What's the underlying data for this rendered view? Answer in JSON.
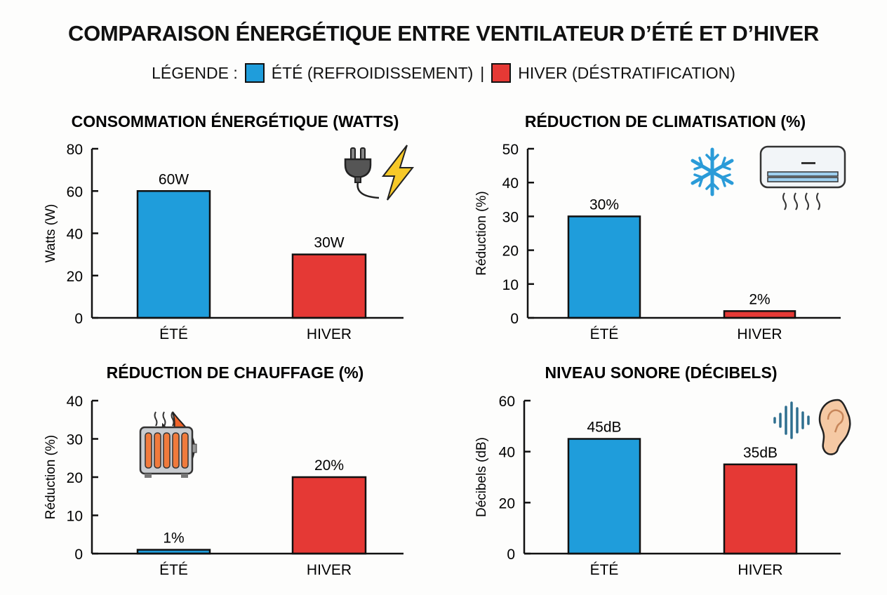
{
  "title": "COMPARAISON ÉNERGÉTIQUE ENTRE VENTILATEUR D’ÉTÉ ET D’HIVER",
  "legend": {
    "label": "LÉGENDE :",
    "items": [
      {
        "name": "ÉTÉ (REFROIDISSEMENT)",
        "color": "#1f9ddb"
      },
      {
        "name": "HIVER (DÉSTRATIFICATION)",
        "color": "#e53935"
      }
    ],
    "separator": "|"
  },
  "chart_data": [
    {
      "type": "bar",
      "title": "CONSOMMATION ÉNERGÉTIQUE (WATTS)",
      "ylabel": "Watts (W)",
      "categories": [
        "ÉTÉ",
        "HIVER"
      ],
      "values": [
        60,
        30
      ],
      "data_labels": [
        "60W",
        "30W"
      ],
      "ylim": [
        0,
        80
      ],
      "yticks": [
        0,
        20,
        40,
        60,
        80
      ],
      "colors": [
        "#1f9ddb",
        "#e53935"
      ],
      "icons": [
        "plug-icon",
        "lightning-icon"
      ]
    },
    {
      "type": "bar",
      "title": "RÉDUCTION DE CLIMATISATION (%)",
      "ylabel": "Réduction (%)",
      "categories": [
        "ÉTÉ",
        "HIVER"
      ],
      "values": [
        30,
        2
      ],
      "data_labels": [
        "30%",
        "2%"
      ],
      "ylim": [
        0,
        50
      ],
      "yticks": [
        0,
        10,
        20,
        30,
        40,
        50
      ],
      "colors": [
        "#1f9ddb",
        "#e53935"
      ],
      "icons": [
        "snowflake-icon",
        "air-conditioner-icon"
      ]
    },
    {
      "type": "bar",
      "title": "RÉDUCTION DE CHAUFFAGE (%)",
      "ylabel": "Réduction (%)",
      "categories": [
        "ÉTÉ",
        "HIVER"
      ],
      "values": [
        1,
        20
      ],
      "data_labels": [
        "1%",
        "20%"
      ],
      "ylim": [
        0,
        40
      ],
      "yticks": [
        0,
        10,
        20,
        30,
        40
      ],
      "colors": [
        "#1f9ddb",
        "#e53935"
      ],
      "icons": [
        "flame-icon",
        "radiator-icon"
      ]
    },
    {
      "type": "bar",
      "title": "NIVEAU SONORE (DÉCIBELS)",
      "ylabel": "Décibels (dB)",
      "categories": [
        "ÉTÉ",
        "HIVER"
      ],
      "values": [
        45,
        35
      ],
      "data_labels": [
        "45dB",
        "35dB"
      ],
      "ylim": [
        0,
        60
      ],
      "yticks": [
        0,
        20,
        40,
        60
      ],
      "colors": [
        "#1f9ddb",
        "#e53935"
      ],
      "icons": [
        "sound-wave-icon",
        "ear-icon"
      ]
    }
  ]
}
